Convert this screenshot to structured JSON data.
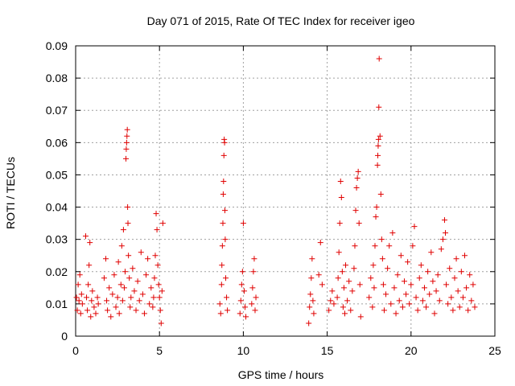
{
  "chart_data": {
    "type": "scatter",
    "title": "Day 071 of 2015, Rate Of TEC Index for receiver igeo",
    "xlabel": "GPS time / hours",
    "ylabel": "ROTI / TECUs",
    "xlim": [
      0,
      25
    ],
    "ylim": [
      0,
      0.09
    ],
    "xticks": [
      0,
      5,
      10,
      15,
      20,
      25
    ],
    "yticks": [
      0,
      0.01,
      0.02,
      0.03,
      0.04,
      0.05,
      0.06,
      0.07,
      0.08,
      0.09
    ],
    "grid": true,
    "marker": "+",
    "color": "#e00000",
    "series": [
      {
        "points": [
          [
            0.05,
            0.012
          ],
          [
            0.1,
            0.008
          ],
          [
            0.15,
            0.016
          ],
          [
            0.2,
            0.011
          ],
          [
            0.25,
            0.019
          ],
          [
            0.3,
            0.007
          ],
          [
            0.35,
            0.013
          ],
          [
            0.4,
            0.01
          ],
          [
            0.6,
            0.031
          ],
          [
            0.65,
            0.012
          ],
          [
            0.7,
            0.008
          ],
          [
            0.75,
            0.016
          ],
          [
            0.8,
            0.022
          ],
          [
            0.85,
            0.029
          ],
          [
            0.9,
            0.006
          ],
          [
            0.95,
            0.011
          ],
          [
            1.0,
            0.014
          ],
          [
            1.1,
            0.009
          ],
          [
            1.2,
            0.007
          ],
          [
            1.3,
            0.012
          ],
          [
            1.35,
            0.01
          ],
          [
            1.7,
            0.018
          ],
          [
            1.8,
            0.024
          ],
          [
            1.85,
            0.011
          ],
          [
            1.9,
            0.008
          ],
          [
            2.0,
            0.015
          ],
          [
            2.1,
            0.006
          ],
          [
            2.2,
            0.013
          ],
          [
            2.3,
            0.019
          ],
          [
            2.4,
            0.009
          ],
          [
            2.5,
            0.012
          ],
          [
            2.55,
            0.023
          ],
          [
            2.6,
            0.007
          ],
          [
            2.7,
            0.016
          ],
          [
            2.75,
            0.028
          ],
          [
            2.8,
            0.011
          ],
          [
            2.85,
            0.033
          ],
          [
            2.9,
            0.015
          ],
          [
            2.95,
            0.02
          ],
          [
            3.0,
            0.055
          ],
          [
            3.02,
            0.058
          ],
          [
            3.04,
            0.06
          ],
          [
            3.06,
            0.062
          ],
          [
            3.08,
            0.064
          ],
          [
            3.1,
            0.04
          ],
          [
            3.12,
            0.035
          ],
          [
            3.15,
            0.025
          ],
          [
            3.2,
            0.018
          ],
          [
            3.25,
            0.009
          ],
          [
            3.3,
            0.012
          ],
          [
            3.4,
            0.021
          ],
          [
            3.5,
            0.014
          ],
          [
            3.6,
            0.008
          ],
          [
            3.7,
            0.017
          ],
          [
            3.8,
            0.011
          ],
          [
            3.9,
            0.026
          ],
          [
            4.0,
            0.013
          ],
          [
            4.1,
            0.007
          ],
          [
            4.2,
            0.019
          ],
          [
            4.3,
            0.024
          ],
          [
            4.4,
            0.01
          ],
          [
            4.5,
            0.015
          ],
          [
            4.6,
            0.009
          ],
          [
            4.65,
            0.012
          ],
          [
            4.7,
            0.018
          ],
          [
            4.75,
            0.025
          ],
          [
            4.8,
            0.038
          ],
          [
            4.85,
            0.033
          ],
          [
            4.9,
            0.022
          ],
          [
            4.95,
            0.016
          ],
          [
            5.0,
            0.012
          ],
          [
            5.05,
            0.008
          ],
          [
            5.1,
            0.004
          ],
          [
            5.15,
            0.014
          ],
          [
            5.2,
            0.035
          ],
          [
            8.6,
            0.01
          ],
          [
            8.65,
            0.007
          ],
          [
            8.7,
            0.016
          ],
          [
            8.72,
            0.022
          ],
          [
            8.75,
            0.028
          ],
          [
            8.78,
            0.035
          ],
          [
            8.8,
            0.044
          ],
          [
            8.82,
            0.048
          ],
          [
            8.84,
            0.056
          ],
          [
            8.86,
            0.061
          ],
          [
            8.88,
            0.06
          ],
          [
            8.9,
            0.039
          ],
          [
            8.92,
            0.03
          ],
          [
            8.95,
            0.018
          ],
          [
            9.0,
            0.012
          ],
          [
            9.05,
            0.008
          ],
          [
            9.8,
            0.007
          ],
          [
            9.85,
            0.011
          ],
          [
            9.9,
            0.016
          ],
          [
            9.95,
            0.02
          ],
          [
            10.0,
            0.035
          ],
          [
            10.05,
            0.014
          ],
          [
            10.1,
            0.009
          ],
          [
            10.15,
            0.006
          ],
          [
            10.5,
            0.01
          ],
          [
            10.55,
            0.015
          ],
          [
            10.6,
            0.02
          ],
          [
            10.65,
            0.024
          ],
          [
            10.7,
            0.008
          ],
          [
            10.75,
            0.012
          ],
          [
            13.9,
            0.004
          ],
          [
            13.95,
            0.009
          ],
          [
            14.0,
            0.013
          ],
          [
            14.05,
            0.018
          ],
          [
            14.1,
            0.024
          ],
          [
            14.15,
            0.011
          ],
          [
            14.2,
            0.007
          ],
          [
            14.5,
            0.019
          ],
          [
            14.6,
            0.029
          ],
          [
            14.7,
            0.016
          ],
          [
            15.1,
            0.008
          ],
          [
            15.2,
            0.011
          ],
          [
            15.3,
            0.014
          ],
          [
            15.4,
            0.01
          ],
          [
            15.6,
            0.012
          ],
          [
            15.65,
            0.018
          ],
          [
            15.7,
            0.026
          ],
          [
            15.75,
            0.035
          ],
          [
            15.8,
            0.048
          ],
          [
            15.85,
            0.043
          ],
          [
            15.9,
            0.02
          ],
          [
            15.95,
            0.009
          ],
          [
            16.0,
            0.015
          ],
          [
            16.05,
            0.007
          ],
          [
            16.1,
            0.022
          ],
          [
            16.2,
            0.011
          ],
          [
            16.3,
            0.017
          ],
          [
            16.4,
            0.008
          ],
          [
            16.5,
            0.014
          ],
          [
            16.6,
            0.021
          ],
          [
            16.65,
            0.028
          ],
          [
            16.7,
            0.039
          ],
          [
            16.75,
            0.046
          ],
          [
            16.8,
            0.049
          ],
          [
            16.85,
            0.051
          ],
          [
            16.9,
            0.035
          ],
          [
            16.95,
            0.016
          ],
          [
            17.0,
            0.006
          ],
          [
            17.5,
            0.012
          ],
          [
            17.6,
            0.018
          ],
          [
            17.7,
            0.009
          ],
          [
            17.75,
            0.022
          ],
          [
            17.8,
            0.015
          ],
          [
            17.85,
            0.028
          ],
          [
            17.9,
            0.037
          ],
          [
            17.95,
            0.04
          ],
          [
            18.0,
            0.053
          ],
          [
            18.02,
            0.056
          ],
          [
            18.04,
            0.059
          ],
          [
            18.06,
            0.061
          ],
          [
            18.08,
            0.071
          ],
          [
            18.1,
            0.086
          ],
          [
            18.15,
            0.062
          ],
          [
            18.2,
            0.044
          ],
          [
            18.25,
            0.03
          ],
          [
            18.3,
            0.024
          ],
          [
            18.35,
            0.016
          ],
          [
            18.4,
            0.008
          ],
          [
            18.5,
            0.013
          ],
          [
            18.6,
            0.021
          ],
          [
            18.7,
            0.028
          ],
          [
            18.8,
            0.01
          ],
          [
            18.9,
            0.032
          ],
          [
            19.0,
            0.015
          ],
          [
            19.1,
            0.007
          ],
          [
            19.2,
            0.019
          ],
          [
            19.3,
            0.011
          ],
          [
            19.4,
            0.025
          ],
          [
            19.5,
            0.009
          ],
          [
            19.6,
            0.017
          ],
          [
            19.7,
            0.013
          ],
          [
            19.8,
            0.023
          ],
          [
            19.9,
            0.01
          ],
          [
            20.0,
            0.016
          ],
          [
            20.1,
            0.028
          ],
          [
            20.2,
            0.034
          ],
          [
            20.3,
            0.012
          ],
          [
            20.4,
            0.008
          ],
          [
            20.5,
            0.018
          ],
          [
            20.6,
            0.022
          ],
          [
            20.7,
            0.011
          ],
          [
            20.8,
            0.015
          ],
          [
            20.9,
            0.009
          ],
          [
            21.0,
            0.02
          ],
          [
            21.1,
            0.013
          ],
          [
            21.2,
            0.026
          ],
          [
            21.3,
            0.017
          ],
          [
            21.4,
            0.007
          ],
          [
            21.5,
            0.014
          ],
          [
            21.6,
            0.019
          ],
          [
            21.7,
            0.011
          ],
          [
            21.8,
            0.027
          ],
          [
            21.9,
            0.03
          ],
          [
            22.0,
            0.036
          ],
          [
            22.05,
            0.032
          ],
          [
            22.1,
            0.016
          ],
          [
            22.2,
            0.01
          ],
          [
            22.3,
            0.021
          ],
          [
            22.4,
            0.012
          ],
          [
            22.5,
            0.008
          ],
          [
            22.6,
            0.018
          ],
          [
            22.7,
            0.024
          ],
          [
            22.8,
            0.014
          ],
          [
            22.9,
            0.009
          ],
          [
            23.0,
            0.02
          ],
          [
            23.1,
            0.012
          ],
          [
            23.2,
            0.025
          ],
          [
            23.3,
            0.015
          ],
          [
            23.4,
            0.008
          ],
          [
            23.5,
            0.019
          ],
          [
            23.6,
            0.011
          ],
          [
            23.7,
            0.016
          ],
          [
            23.8,
            0.009
          ]
        ]
      }
    ]
  }
}
